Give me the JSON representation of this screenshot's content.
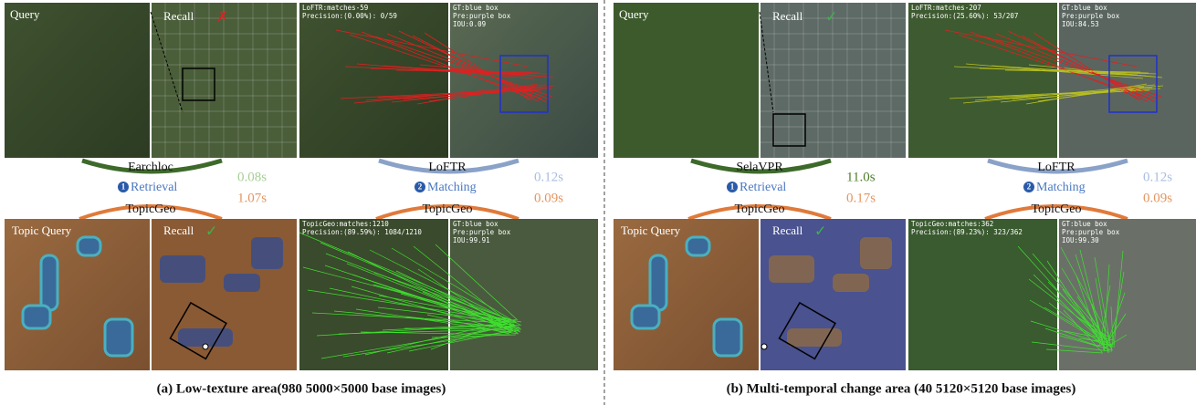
{
  "halves": [
    {
      "query_label": "Query",
      "recall_label": "Recall",
      "recall_correct": false,
      "baseline_match": {
        "stats": [
          "LoFTR:matches-59",
          "Precision:(0.00%): 0/59"
        ],
        "gt": [
          "GT:blue box",
          "Pre:purple box",
          "IOU:0.09"
        ]
      },
      "retrieval": {
        "baseline": "Earchloc",
        "baseline_time": "0.08s",
        "step": "1",
        "label": "Retrieval",
        "ours": "TopicGeo",
        "ours_time": "1.07s"
      },
      "matching": {
        "baseline": "LoFTR",
        "baseline_time": "0.12s",
        "step": "2",
        "label": "Matching",
        "ours": "TopicGeo",
        "ours_time": "0.09s"
      },
      "topic_query_label": "Topic Query",
      "topic_recall_label": "Recall",
      "ours_match": {
        "stats": [
          "TopicGeo:matches:1210",
          "Precision:(89.59%): 1084/1210"
        ],
        "gt": [
          "GT:blue box",
          "Pre:purple box",
          "IOU:99.91"
        ]
      },
      "caption": "(a) Low-texture area(980 5000×5000 base images)"
    },
    {
      "query_label": "Query",
      "recall_label": "Recall",
      "recall_correct": true,
      "baseline_match": {
        "stats": [
          "LoFTR:matches-207",
          "Precision:(25.60%): 53/207"
        ],
        "gt": [
          "GT:blue box",
          "Pre:purple box",
          "IOU:84.53"
        ]
      },
      "retrieval": {
        "baseline": "SelaVPR",
        "baseline_time": "11.0s",
        "step": "1",
        "label": "Retrieval",
        "ours": "TopicGeo",
        "ours_time": "0.17s"
      },
      "matching": {
        "baseline": "LoFTR",
        "baseline_time": "0.12s",
        "step": "2",
        "label": "Matching",
        "ours": "TopicGeo",
        "ours_time": "0.09s"
      },
      "topic_query_label": "Topic Query",
      "topic_recall_label": "Recall",
      "ours_match": {
        "stats": [
          "TopicGeo:matches:362",
          "Precision:(89.23%): 323/362"
        ],
        "gt": [
          "GT:blue box",
          "Pre:purple box",
          "IOU:99.30"
        ]
      },
      "caption": "(b) Multi-temporal change area (40 5120×5120  base  images)"
    }
  ]
}
